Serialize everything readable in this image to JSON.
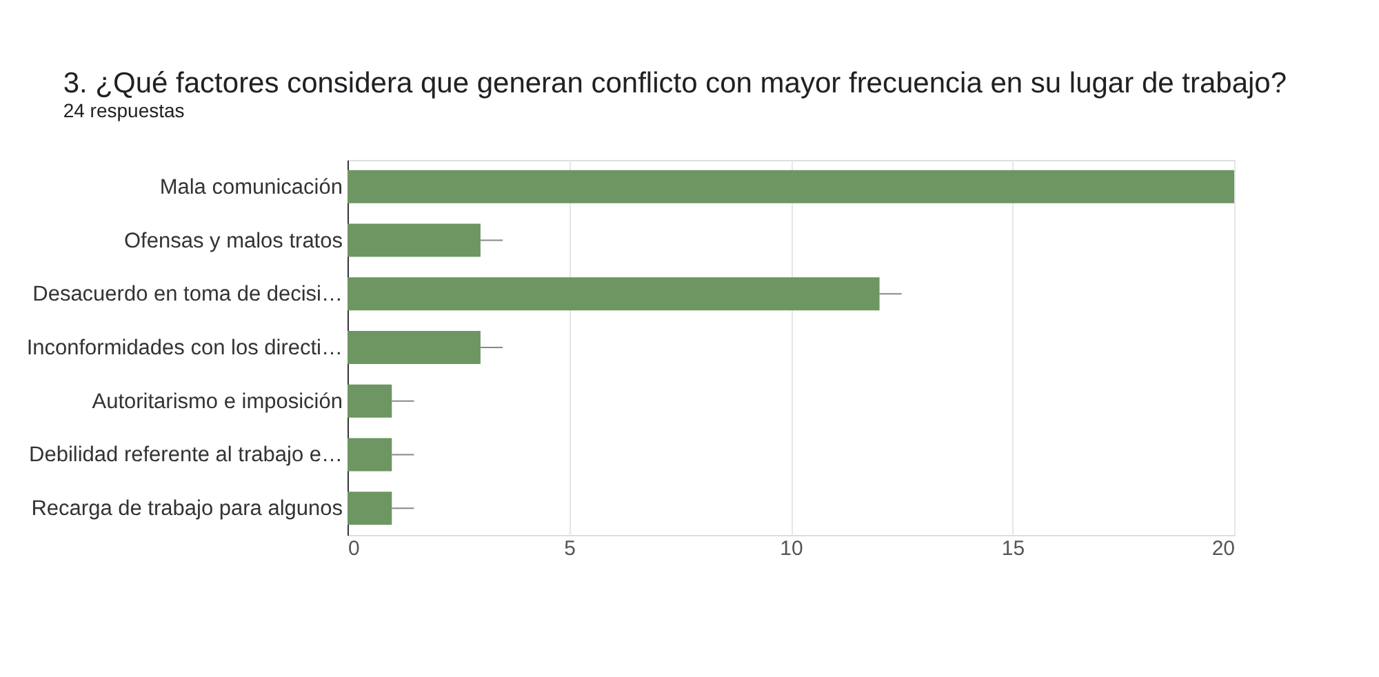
{
  "chart_data": {
    "type": "bar",
    "orientation": "horizontal",
    "title": "3. ¿Qué factores considera que generan conflicto con mayor frecuencia en su lugar de trabajo?",
    "subtitle": "24 respuestas",
    "categories": [
      "Mala comunicación",
      "Ofensas y malos tratos",
      "Desacuerdo en toma de decisi…",
      "Inconformidades con los directi…",
      "Autoritarismo e imposición",
      "Debilidad referente al trabajo e…",
      "Recarga de trabajo para algunos"
    ],
    "values": [
      20,
      3,
      12,
      3,
      1,
      1,
      1
    ],
    "errors": [
      null,
      [
        3,
        3.5
      ],
      [
        12,
        12.5
      ],
      [
        3,
        3.5
      ],
      [
        1,
        1.5
      ],
      [
        1,
        1.5
      ],
      [
        1,
        1.5
      ]
    ],
    "color": "#6d9662",
    "xlim": [
      0,
      20
    ],
    "xticks": [
      0,
      5,
      10,
      15,
      20
    ],
    "grid": "x"
  }
}
